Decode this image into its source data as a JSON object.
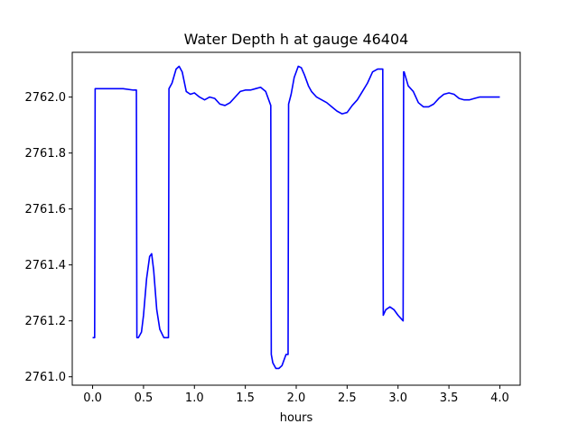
{
  "chart_data": {
    "type": "line",
    "title": "Water Depth h at gauge 46404",
    "xlabel": "hours",
    "ylabel": "",
    "xlim": [
      -0.2,
      4.2
    ],
    "ylim": [
      2760.97,
      2762.16
    ],
    "xticks": [
      0.0,
      0.5,
      1.0,
      1.5,
      2.0,
      2.5,
      3.0,
      3.5,
      4.0
    ],
    "xtick_labels": [
      "0.0",
      "0.5",
      "1.0",
      "1.5",
      "2.0",
      "2.5",
      "3.0",
      "3.5",
      "4.0"
    ],
    "yticks": [
      2761.0,
      2761.2,
      2761.4,
      2761.6,
      2761.8,
      2762.0
    ],
    "ytick_labels": [
      "2761.0",
      "2761.2",
      "2761.4",
      "2761.6",
      "2761.8",
      "2762.0"
    ],
    "grid": false,
    "series": [
      {
        "color": "#0000ff",
        "x": [
          0.0,
          0.02,
          0.025,
          0.1,
          0.2,
          0.3,
          0.4,
          0.43,
          0.435,
          0.45,
          0.48,
          0.5,
          0.53,
          0.56,
          0.58,
          0.6,
          0.63,
          0.66,
          0.7,
          0.73,
          0.745,
          0.75,
          0.78,
          0.82,
          0.85,
          0.88,
          0.92,
          0.96,
          1.0,
          1.05,
          1.1,
          1.15,
          1.2,
          1.25,
          1.3,
          1.35,
          1.4,
          1.45,
          1.5,
          1.55,
          1.6,
          1.65,
          1.7,
          1.75,
          1.755,
          1.77,
          1.8,
          1.83,
          1.86,
          1.9,
          1.92,
          1.925,
          1.95,
          1.98,
          2.02,
          2.05,
          2.08,
          2.12,
          2.15,
          2.2,
          2.25,
          2.3,
          2.35,
          2.4,
          2.45,
          2.5,
          2.55,
          2.6,
          2.65,
          2.7,
          2.75,
          2.8,
          2.85,
          2.855,
          2.88,
          2.92,
          2.96,
          3.0,
          3.05,
          3.055,
          3.06,
          3.1,
          3.15,
          3.2,
          3.25,
          3.3,
          3.35,
          3.4,
          3.45,
          3.5,
          3.55,
          3.6,
          3.65,
          3.7,
          3.75,
          3.8,
          3.85,
          3.9,
          3.95,
          4.0
        ],
        "y": [
          2761.14,
          2761.14,
          2762.03,
          2762.03,
          2762.03,
          2762.03,
          2762.025,
          2762.025,
          2761.14,
          2761.14,
          2761.16,
          2761.22,
          2761.35,
          2761.43,
          2761.44,
          2761.38,
          2761.24,
          2761.17,
          2761.14,
          2761.14,
          2761.14,
          2762.03,
          2762.05,
          2762.1,
          2762.11,
          2762.09,
          2762.02,
          2762.01,
          2762.015,
          2762.0,
          2761.99,
          2762.0,
          2761.995,
          2761.975,
          2761.97,
          2761.98,
          2762.0,
          2762.02,
          2762.025,
          2762.025,
          2762.03,
          2762.035,
          2762.02,
          2761.97,
          2761.08,
          2761.05,
          2761.03,
          2761.03,
          2761.04,
          2761.08,
          2761.08,
          2761.975,
          2762.01,
          2762.07,
          2762.11,
          2762.105,
          2762.08,
          2762.04,
          2762.02,
          2762.0,
          2761.99,
          2761.98,
          2761.965,
          2761.95,
          2761.94,
          2761.945,
          2761.97,
          2761.99,
          2762.02,
          2762.05,
          2762.09,
          2762.1,
          2762.1,
          2761.22,
          2761.24,
          2761.25,
          2761.24,
          2761.22,
          2761.2,
          2762.09,
          2762.09,
          2762.04,
          2762.02,
          2761.98,
          2761.965,
          2761.965,
          2761.975,
          2761.995,
          2762.01,
          2762.015,
          2762.01,
          2761.995,
          2761.99,
          2761.99,
          2761.995,
          2762.0,
          2762.0,
          2762.0,
          2762.0,
          2762.0
        ]
      }
    ]
  }
}
